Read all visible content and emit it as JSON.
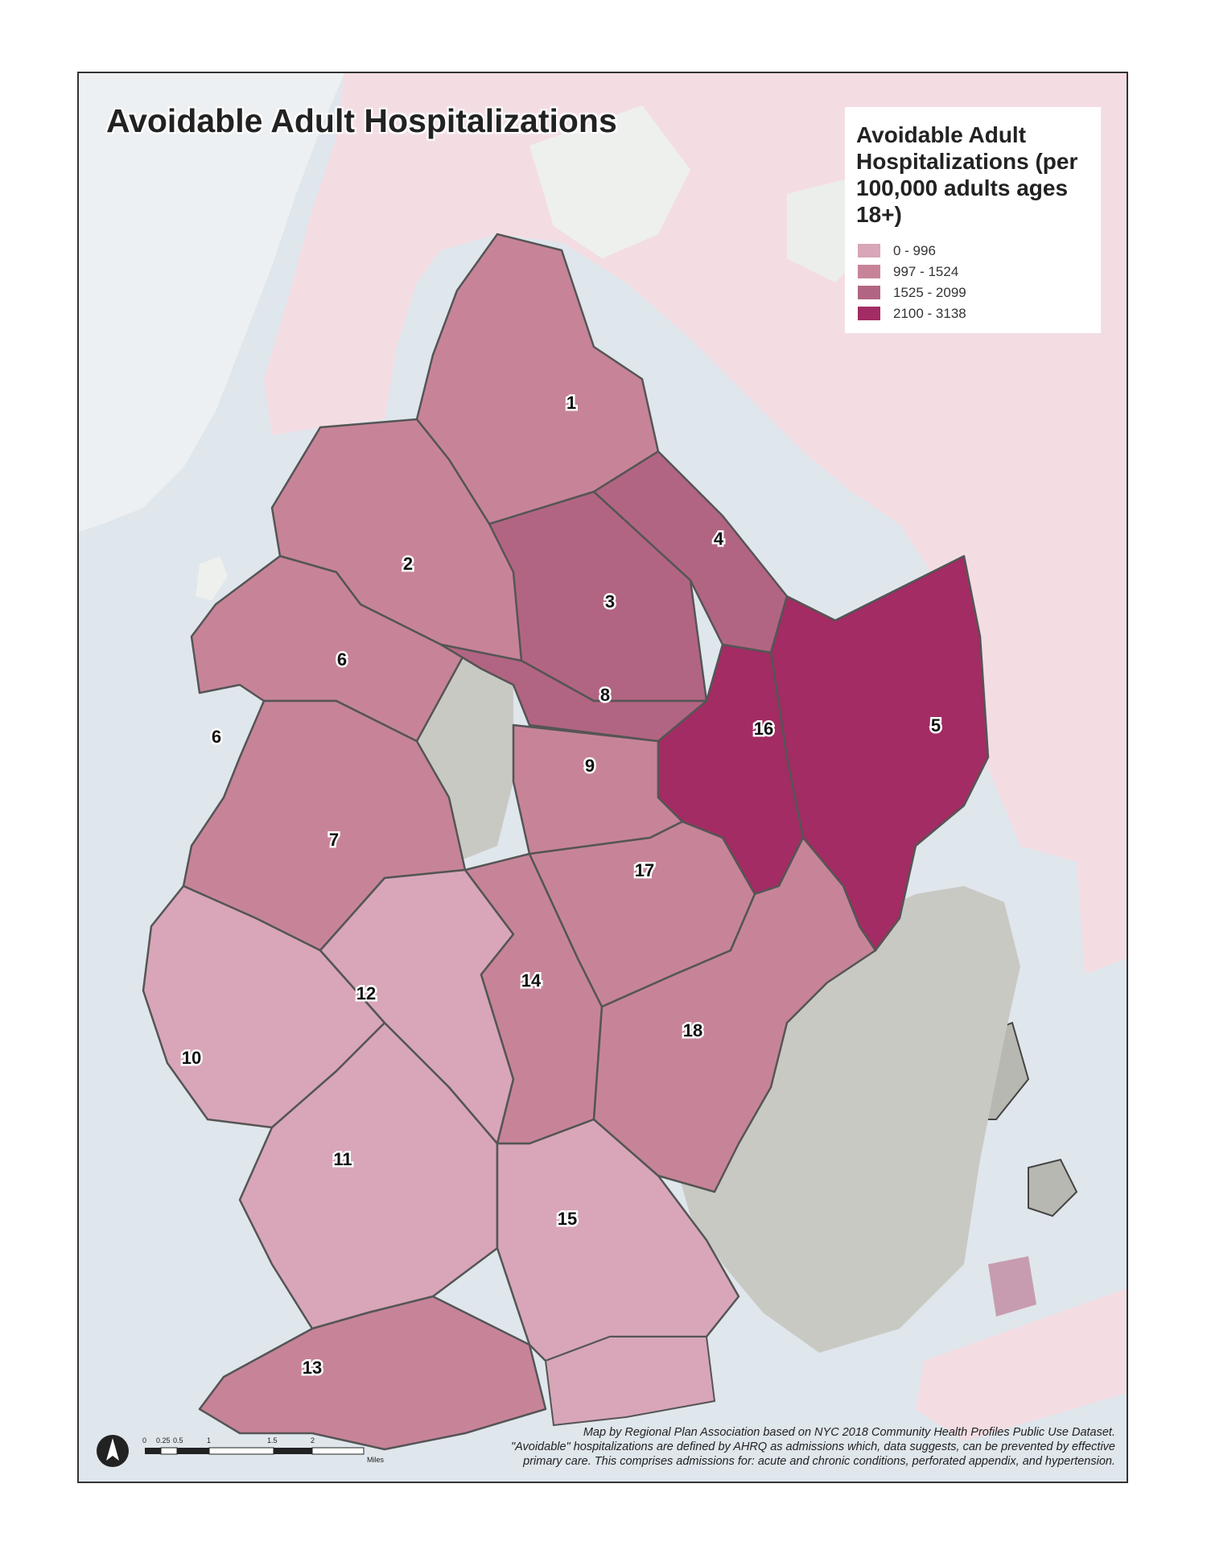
{
  "title": "Avoidable Adult Hospitalizations",
  "legend": {
    "title": "Avoidable Adult Hospitalizations (per 100,000 adults ages 18+)",
    "classes": [
      {
        "label": "0 - 996",
        "color": "#d8a6b8"
      },
      {
        "label": "997 - 1524",
        "color": "#c78499"
      },
      {
        "label": "1525 - 2099",
        "color": "#b26582"
      },
      {
        "label": "2100 - 3138",
        "color": "#a22c63"
      }
    ]
  },
  "districts": [
    {
      "id": "1",
      "class": 1
    },
    {
      "id": "2",
      "class": 1
    },
    {
      "id": "3",
      "class": 2
    },
    {
      "id": "4",
      "class": 2
    },
    {
      "id": "5",
      "class": 3
    },
    {
      "id": "6",
      "class": 1
    },
    {
      "id": "7",
      "class": 1
    },
    {
      "id": "8",
      "class": 2
    },
    {
      "id": "9",
      "class": 1
    },
    {
      "id": "10",
      "class": 0
    },
    {
      "id": "11",
      "class": 0
    },
    {
      "id": "12",
      "class": 0
    },
    {
      "id": "13",
      "class": 1
    },
    {
      "id": "14",
      "class": 1
    },
    {
      "id": "15",
      "class": 0
    },
    {
      "id": "16",
      "class": 3
    },
    {
      "id": "17",
      "class": 1
    },
    {
      "id": "18",
      "class": 1
    }
  ],
  "credits": [
    "Map by Regional Plan Association based on NYC 2018 Community Health Profiles Public Use Dataset.",
    "\"Avoidable\" hospitalizations are defined by AHRQ as admissions which, data suggests, can be prevented by effective",
    "primary care. This comprises admissions for: acute and chronic conditions, perforated appendix, and hypertension."
  ],
  "scale": {
    "ticks": [
      "0",
      "0.25",
      "0.5",
      "1",
      "1.5",
      "2"
    ],
    "unit": "Miles"
  },
  "colors": {
    "water": "#dfe6ec",
    "land_neighbor": "#f3dde3",
    "park": "#c9c9c4",
    "boundary": "#555555"
  }
}
